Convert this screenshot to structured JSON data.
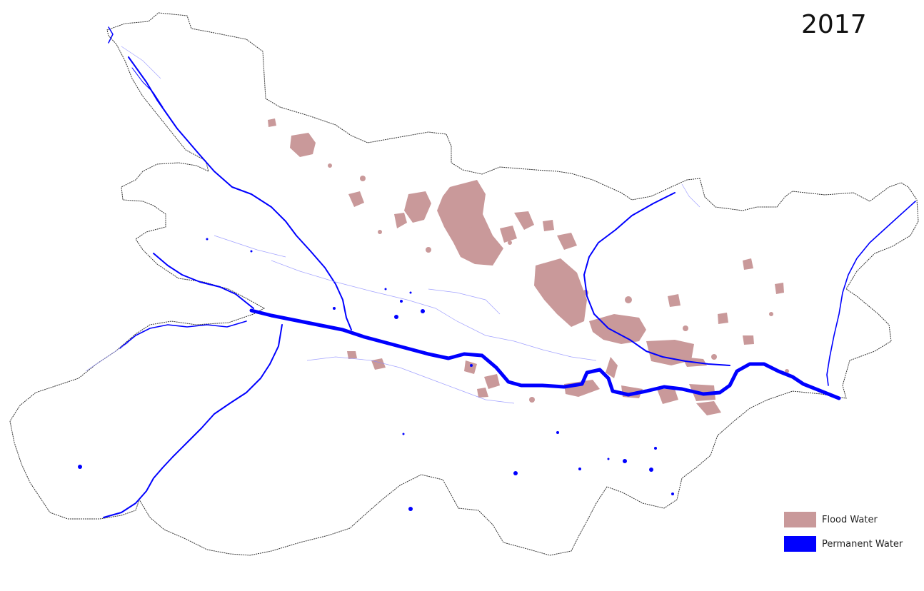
{
  "map": {
    "year": "2017",
    "colors": {
      "boundary": "#333333",
      "flood_water": "#c9999a",
      "permanent_water": "#0000ff"
    },
    "legend": [
      {
        "label": "Flood Water",
        "color": "#c9999a"
      },
      {
        "label": "Permanent Water",
        "color": "#0000ff"
      }
    ]
  }
}
